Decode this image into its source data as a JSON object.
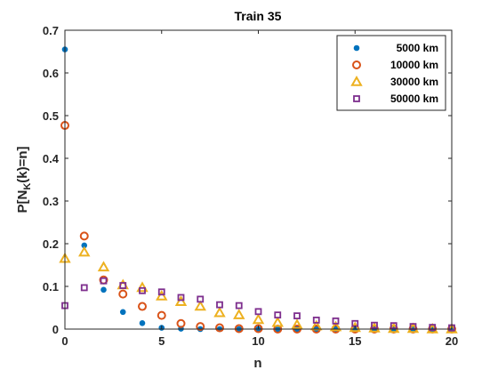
{
  "chart_data": {
    "type": "scatter",
    "title": "Train 35",
    "xlabel": "n",
    "ylabel_main": "P[N",
    "ylabel_sub": "K",
    "ylabel_rest": "(k)=n]",
    "xlim": [
      0,
      20
    ],
    "ylim": [
      0,
      0.7
    ],
    "xticks": [
      0,
      5,
      10,
      15,
      20
    ],
    "yticks": [
      0,
      0.1,
      0.2,
      0.3,
      0.4,
      0.5,
      0.6,
      0.7
    ],
    "xtick_labels": [
      "0",
      "5",
      "10",
      "15",
      "20"
    ],
    "ytick_labels": [
      "0",
      "0.1",
      "0.2",
      "0.3",
      "0.4",
      "0.5",
      "0.6",
      "0.7"
    ],
    "grid": false,
    "legend_position": "top-right",
    "x": [
      0,
      1,
      2,
      3,
      4,
      5,
      6,
      7,
      8,
      9,
      10,
      11,
      12,
      13,
      14,
      15,
      16,
      17,
      18,
      19,
      20
    ],
    "series": [
      {
        "name": "5000 km",
        "marker": "filled-circle",
        "color": "#0072BD",
        "values": [
          0.655,
          0.196,
          0.092,
          0.04,
          0.014,
          0.003,
          0.001,
          0.0,
          0.0,
          0.0,
          0.0,
          0.0,
          0.0,
          0.0,
          0.0,
          0.0,
          0.0,
          0.0,
          0.0,
          0.0,
          0.0
        ]
      },
      {
        "name": "10000 km",
        "marker": "open-circle",
        "color": "#D95319",
        "values": [
          0.477,
          0.218,
          0.115,
          0.082,
          0.053,
          0.032,
          0.013,
          0.006,
          0.003,
          0.001,
          0.001,
          0.0,
          0.0,
          0.0,
          0.0,
          0.0,
          0.0,
          0.0,
          0.0,
          0.0,
          0.0
        ]
      },
      {
        "name": "30000 km",
        "marker": "open-triangle",
        "color": "#EDB120",
        "values": [
          0.165,
          0.18,
          0.145,
          0.103,
          0.097,
          0.077,
          0.064,
          0.053,
          0.038,
          0.033,
          0.022,
          0.015,
          0.01,
          0.007,
          0.005,
          0.003,
          0.002,
          0.001,
          0.001,
          0.0,
          0.0
        ]
      },
      {
        "name": "50000 km",
        "marker": "open-square",
        "color": "#7E2F8E",
        "values": [
          0.055,
          0.097,
          0.113,
          0.102,
          0.09,
          0.087,
          0.074,
          0.07,
          0.057,
          0.055,
          0.041,
          0.033,
          0.031,
          0.021,
          0.019,
          0.013,
          0.009,
          0.008,
          0.006,
          0.004,
          0.003
        ]
      }
    ]
  }
}
